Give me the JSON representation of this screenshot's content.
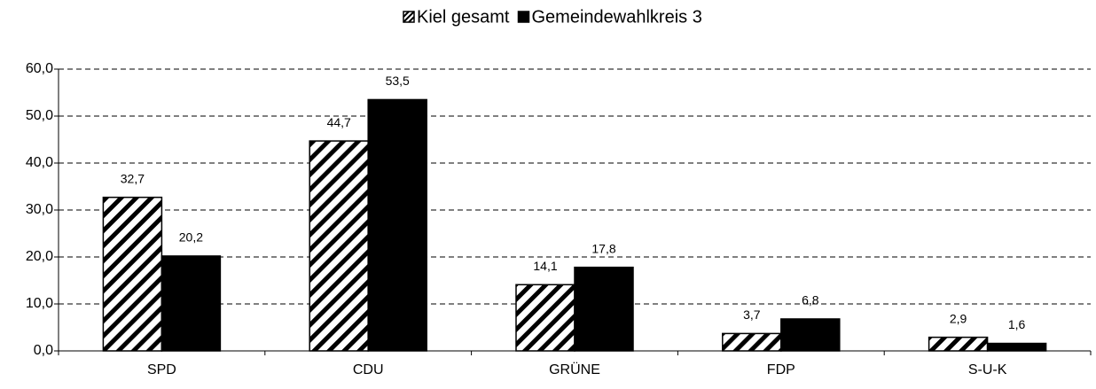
{
  "chart_data": {
    "type": "bar",
    "categories": [
      "SPD",
      "CDU",
      "GRÜNE",
      "FDP",
      "S-U-K"
    ],
    "series": [
      {
        "name": "Kiel gesamt",
        "color": "#000000",
        "hatch": true,
        "values": [
          32.7,
          44.7,
          14.1,
          3.7,
          2.9
        ],
        "value_labels": [
          "32,7",
          "44,7",
          "14,1",
          "3,7",
          "2,9"
        ]
      },
      {
        "name": "Gemeindewahlkreis 3",
        "color": "#000000",
        "values": [
          20.2,
          53.5,
          17.8,
          6.8,
          1.6
        ],
        "value_labels": [
          "20,2",
          "53,5",
          "17,8",
          "6,8",
          "1,6"
        ]
      }
    ],
    "ylim": [
      0,
      60
    ],
    "yticks": [
      {
        "value": 0,
        "label": "0,0"
      },
      {
        "value": 10,
        "label": "10,0"
      },
      {
        "value": 20,
        "label": "20,0"
      },
      {
        "value": 30,
        "label": "30,0"
      },
      {
        "value": 40,
        "label": "40,0"
      },
      {
        "value": 50,
        "label": "50,0"
      },
      {
        "value": 60,
        "label": "60,0"
      }
    ],
    "grid": true,
    "legend": "top"
  }
}
